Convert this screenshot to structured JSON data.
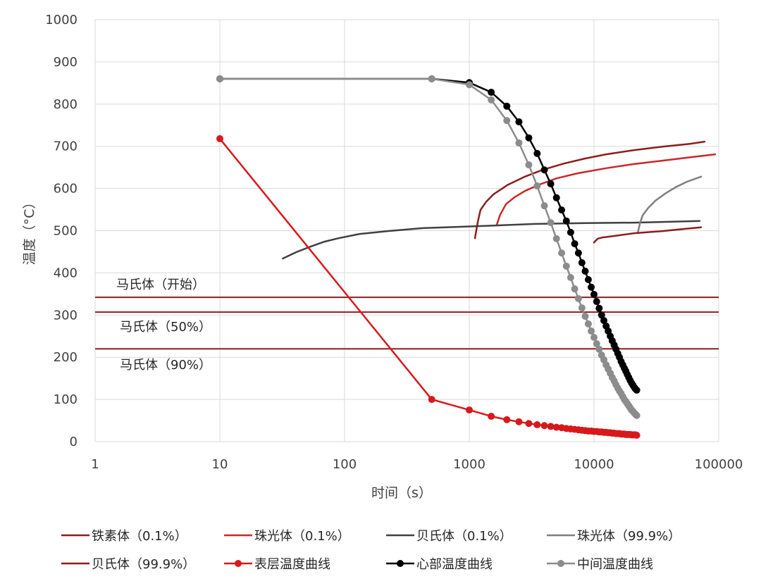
{
  "chart_data": {
    "type": "line",
    "xlabel": "时间（s）",
    "ylabel": "温度（°C）",
    "xscale": "log",
    "xlim": [
      1,
      100000
    ],
    "ylim": [
      0,
      1000
    ],
    "x_ticks": [
      1,
      10,
      100,
      1000,
      10000,
      100000
    ],
    "y_ticks": [
      0,
      100,
      200,
      300,
      400,
      500,
      600,
      700,
      800,
      900,
      1000
    ],
    "grid": true,
    "legend": "bottom",
    "reference_lines": [
      {
        "label": "马氏体（开始）",
        "y": 342,
        "color": "#8B1E1E"
      },
      {
        "label": "马氏体（50%）",
        "y": 307,
        "color": "#8B1E1E"
      },
      {
        "label": "马氏体（90%）",
        "y": 220,
        "color": "#8B1E1E"
      }
    ],
    "series": [
      {
        "name": "铁素体（0.1%）",
        "color": "#8B1E1E",
        "marker": "none",
        "x": [
          1110,
          1170,
          1230,
          1370,
          1560,
          2020,
          2790,
          3870,
          5710,
          8450,
          12500,
          21000,
          35300,
          59400,
          77000
        ],
        "y": [
          482,
          521,
          549,
          569,
          586,
          608,
          628,
          644,
          659,
          671,
          681,
          691,
          699,
          706,
          711
        ]
      },
      {
        "name": "珠光体（0.1%）",
        "color": "#C8282A",
        "marker": "none",
        "x": [
          1660,
          1770,
          1970,
          2300,
          2790,
          3630,
          5020,
          7410,
          12500,
          21000,
          35300,
          59400,
          93700
        ],
        "y": [
          514,
          538,
          563,
          579,
          594,
          609,
          624,
          636,
          648,
          658,
          666,
          674,
          681
        ]
      },
      {
        "name": "贝氏体（0.1%）",
        "color": "#404040",
        "marker": "none",
        "x": [
          32,
          41,
          53,
          69,
          89,
          131,
          221,
          424,
          812,
          1560,
          3400,
          8450,
          21000,
          40300,
          70400
        ],
        "y": [
          434,
          449,
          462,
          474,
          482,
          492,
          499,
          506,
          509,
          512,
          516,
          518,
          519,
          521,
          523
        ]
      },
      {
        "name": "珠光体（99.9%）",
        "color": "#7F7F7F",
        "marker": "none",
        "x": [
          22400,
          23300,
          24500,
          27200,
          31000,
          37700,
          45800,
          55700,
          72200
        ],
        "y": [
          494,
          516,
          536,
          554,
          571,
          589,
          604,
          616,
          628
        ]
      },
      {
        "name": "贝氏体（99.9%）",
        "color": "#8B1E1E",
        "marker": "none",
        "x": [
          10000,
          10700,
          11700,
          14200,
          21000,
          35300,
          52200,
          72200
        ],
        "y": [
          472,
          481,
          484,
          487,
          494,
          499,
          504,
          508
        ]
      },
      {
        "name": "表层温度曲线",
        "color": "#D7191C",
        "marker": "circle",
        "x": [
          10,
          500,
          1000,
          1500,
          2000,
          2500,
          3000,
          3500,
          4000,
          4500,
          5000,
          5500,
          6000,
          6500,
          7000,
          7500,
          8000,
          8500,
          9000,
          9500,
          10000,
          10500,
          11000,
          11500,
          12000,
          12500,
          13000,
          13500,
          14000,
          14500,
          15000,
          15500,
          16000,
          16500,
          17000,
          17500,
          18000,
          18500,
          19000,
          19500,
          20000,
          20500,
          21000,
          21500,
          22000
        ],
        "y": [
          718,
          100,
          75,
          60,
          52,
          47,
          43,
          40,
          38,
          36,
          34,
          33,
          31,
          30,
          29,
          28,
          27,
          26,
          25,
          25,
          24,
          24,
          23,
          23,
          22,
          22,
          21,
          21,
          20,
          20,
          19,
          19,
          19,
          18,
          18,
          18,
          17,
          17,
          17,
          17,
          16,
          16,
          16,
          16,
          15
        ]
      },
      {
        "name": "心部温度曲线",
        "color": "#000000",
        "marker": "circle",
        "x": [
          10,
          500,
          1000,
          1500,
          2000,
          2500,
          3000,
          3500,
          4000,
          4500,
          5000,
          5500,
          6000,
          6500,
          7000,
          7500,
          8000,
          8500,
          9000,
          9500,
          10000,
          10500,
          11000,
          11500,
          12000,
          12500,
          13000,
          13500,
          14000,
          14500,
          15000,
          15500,
          16000,
          16500,
          17000,
          17500,
          18000,
          18500,
          19000,
          19500,
          20000,
          20500,
          21000,
          21500,
          22000
        ],
        "y": [
          860,
          860,
          851,
          828,
          795,
          758,
          720,
          683,
          644,
          611,
          578,
          549,
          523,
          496,
          469,
          447,
          424,
          404,
          384,
          366,
          349,
          332,
          316,
          300,
          287,
          274,
          262,
          250,
          239,
          229,
          219,
          209,
          200,
          190,
          182,
          174,
          167,
          159,
          152,
          145,
          139,
          134,
          129,
          125,
          122
        ]
      },
      {
        "name": "中间温度曲线",
        "color": "#8C8C8C",
        "marker": "circle",
        "x": [
          10,
          500,
          1000,
          1500,
          2000,
          2500,
          3000,
          3500,
          4000,
          4500,
          5000,
          5500,
          6000,
          6500,
          7000,
          7500,
          8000,
          8500,
          9000,
          9500,
          10000,
          10500,
          11000,
          11500,
          12000,
          12500,
          13000,
          13500,
          14000,
          14500,
          15000,
          15500,
          16000,
          16500,
          17000,
          17500,
          18000,
          18500,
          19000,
          19500,
          20000,
          20500,
          21000,
          21500,
          22000
        ],
        "y": [
          860,
          860,
          846,
          810,
          761,
          708,
          656,
          606,
          559,
          519,
          481,
          447,
          416,
          389,
          362,
          339,
          317,
          297,
          279,
          262,
          247,
          232,
          219,
          205,
          194,
          182,
          172,
          162,
          152,
          144,
          135,
          127,
          120,
          114,
          107,
          100,
          95,
          90,
          85,
          80,
          75,
          72,
          68,
          65,
          62
        ]
      }
    ]
  }
}
